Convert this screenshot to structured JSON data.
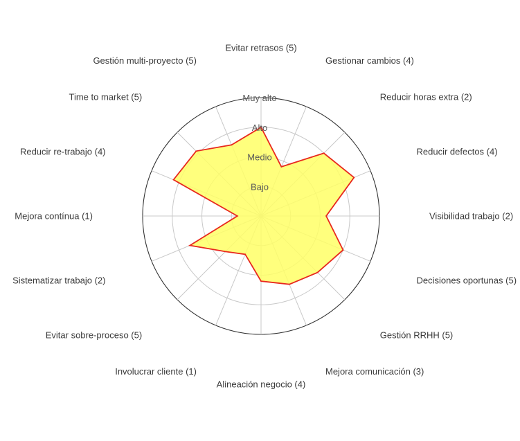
{
  "chart_data": {
    "type": "radar",
    "title": "",
    "levels": [
      "Bajo",
      "Medio",
      "Alto",
      "Muy alto"
    ],
    "max": 4,
    "axes": [
      "Evitar retrasos (5)",
      "Gestionar cambios (4)",
      "Reducir horas extra (2)",
      "Reducir defectos (4)",
      "Visibilidad trabajo (2)",
      "Decisiones oportunas (5)",
      "Gestión RRHH (5)",
      "Mejora comunicación (3)",
      "Alineación negocio (4)",
      "Involucrar cliente (1)",
      "Evitar sobre-proceso (5)",
      "Sistematizar trabajo (2)",
      "Mejora contínua (1)",
      "Reducir re-trabajo (4)",
      "Time to market (5)",
      "Gestión multi-proyecto (5)"
    ],
    "series": [
      {
        "values": [
          3.0,
          1.8,
          3.0,
          3.4,
          2.2,
          3.0,
          2.7,
          2.5,
          2.2,
          1.4,
          1.7,
          2.6,
          0.8,
          3.2,
          3.1,
          2.6
        ]
      }
    ],
    "fill_color": "#ffff66",
    "line_color": "#e8281e",
    "grid_color": "#c8c8c8",
    "grid": true
  }
}
